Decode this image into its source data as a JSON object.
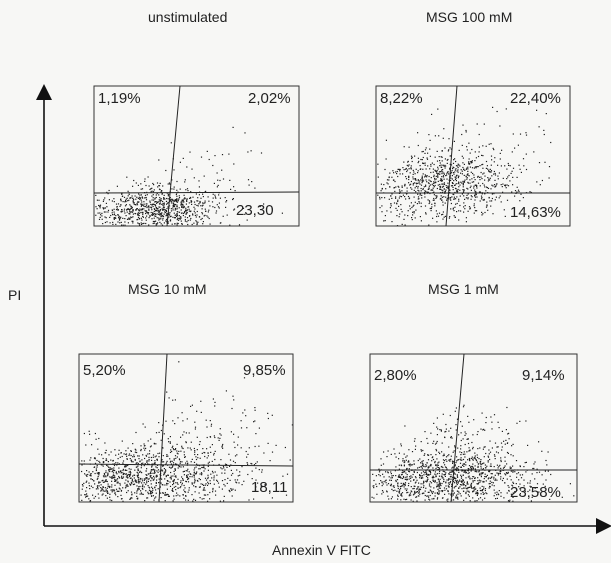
{
  "chart_data": {
    "type": "scatter",
    "xlabel": "Annexin V FITC",
    "ylabel": "PI",
    "panels": [
      {
        "title": "unstimulated",
        "quadrants": {
          "upper_left": "1,19%",
          "upper_right": "2,02%",
          "lower_right": "23,30"
        }
      },
      {
        "title": "MSG 100 mM",
        "quadrants": {
          "upper_left": "8,22%",
          "upper_right": "22,40%",
          "lower_right": "14,63%"
        }
      },
      {
        "title": "MSG 10 mM",
        "quadrants": {
          "upper_left": "5,20%",
          "upper_right": "9,85%",
          "lower_right": "18,11"
        }
      },
      {
        "title": "MSG 1 mM",
        "quadrants": {
          "upper_left": "2,80%",
          "upper_right": "9,14%",
          "lower_right": "23,58%"
        }
      }
    ]
  }
}
